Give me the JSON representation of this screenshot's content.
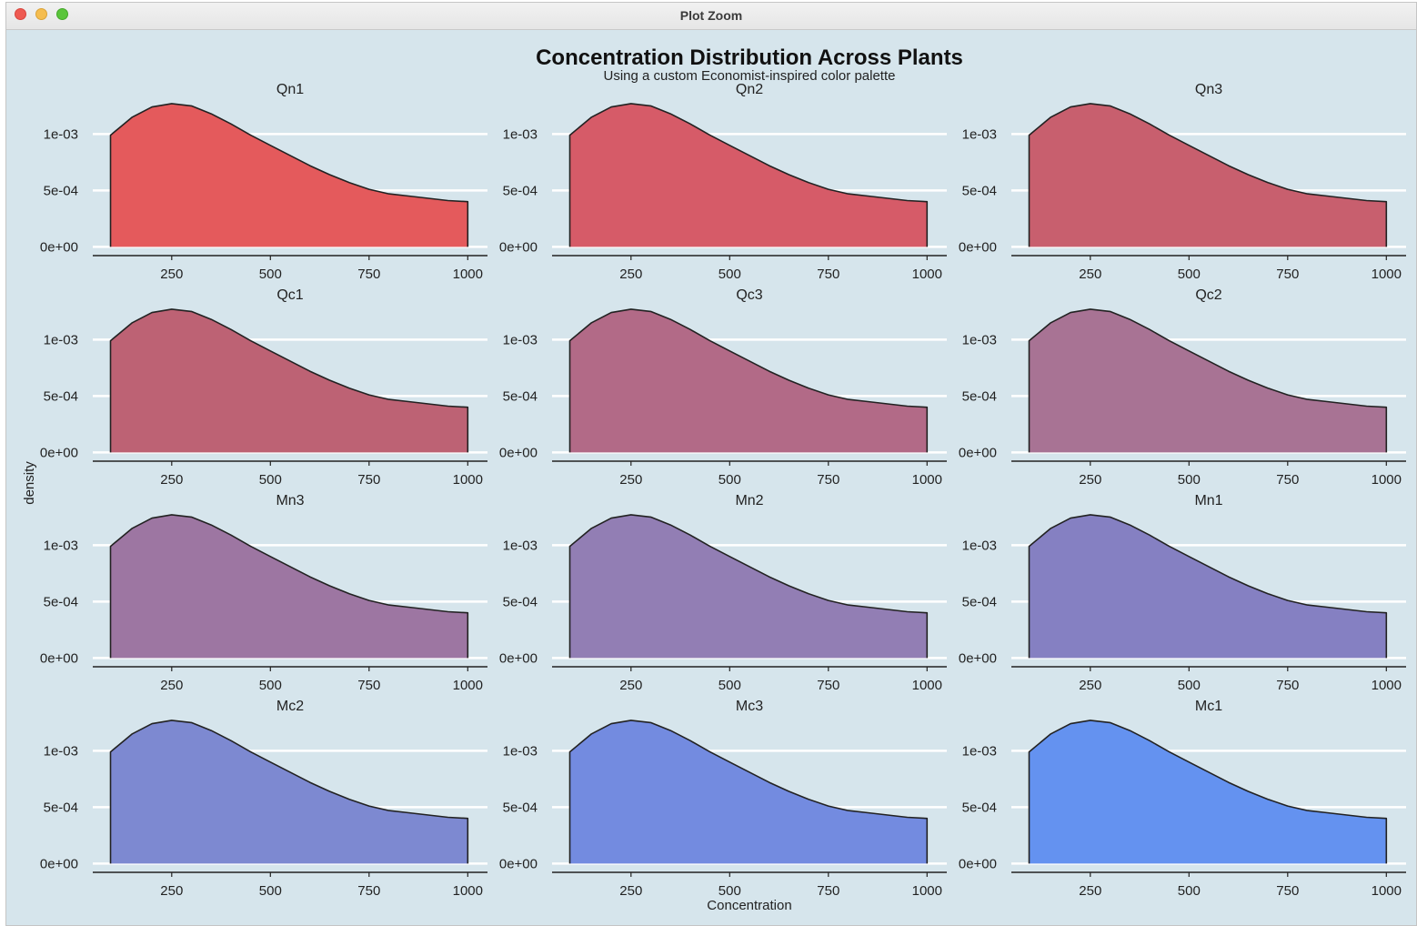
{
  "window": {
    "title": "Plot Zoom"
  },
  "colors": {
    "panel_background": "#d6e5ec",
    "grid": "#ffffff",
    "curve_stroke": "#222222",
    "fill_start": "#e45a5c",
    "fill_end": "#6492f0"
  },
  "chart_data": {
    "type": "area",
    "title": "Concentration Distribution Across Plants",
    "subtitle": "Using a custom Economist-inspired color palette",
    "xlabel": "Concentration",
    "ylabel": "density",
    "xlim": [
      50,
      1050
    ],
    "ylim": [
      -7e-05,
      0.00135
    ],
    "x_ticks": [
      250,
      500,
      750,
      1000
    ],
    "x_tick_labels": [
      "250",
      "500",
      "750",
      "1000"
    ],
    "y_ticks": [
      0,
      0.0005,
      0.001
    ],
    "y_tick_labels": [
      "0e+00",
      "5e-04",
      "1e-03"
    ],
    "grid": true,
    "facet_layout": {
      "rows": 4,
      "cols": 3
    },
    "density_curve": {
      "x": [
        95,
        150,
        200,
        250,
        300,
        350,
        400,
        450,
        500,
        550,
        600,
        650,
        700,
        750,
        800,
        850,
        900,
        950,
        1000
      ],
      "y": [
        0.00099,
        0.00115,
        0.00124,
        0.00127,
        0.00125,
        0.00118,
        0.00109,
        0.00099,
        0.0009,
        0.00081,
        0.00072,
        0.00064,
        0.00057,
        0.00051,
        0.00047,
        0.00045,
        0.00043,
        0.00041,
        0.0004
      ]
    },
    "panels": [
      {
        "name": "Qn1",
        "color": "#e45a5c"
      },
      {
        "name": "Qn2",
        "color": "#d65b68"
      },
      {
        "name": "Qn3",
        "color": "#c85f6e"
      },
      {
        "name": "Qc1",
        "color": "#bd6274"
      },
      {
        "name": "Qc3",
        "color": "#b26a87"
      },
      {
        "name": "Qc2",
        "color": "#a87394"
      },
      {
        "name": "Mn3",
        "color": "#9d76a2"
      },
      {
        "name": "Mn2",
        "color": "#927eb4"
      },
      {
        "name": "Mn1",
        "color": "#8580c2"
      },
      {
        "name": "Mc2",
        "color": "#7d89d1"
      },
      {
        "name": "Mc3",
        "color": "#738be0"
      },
      {
        "name": "Mc1",
        "color": "#6492f0"
      }
    ]
  }
}
